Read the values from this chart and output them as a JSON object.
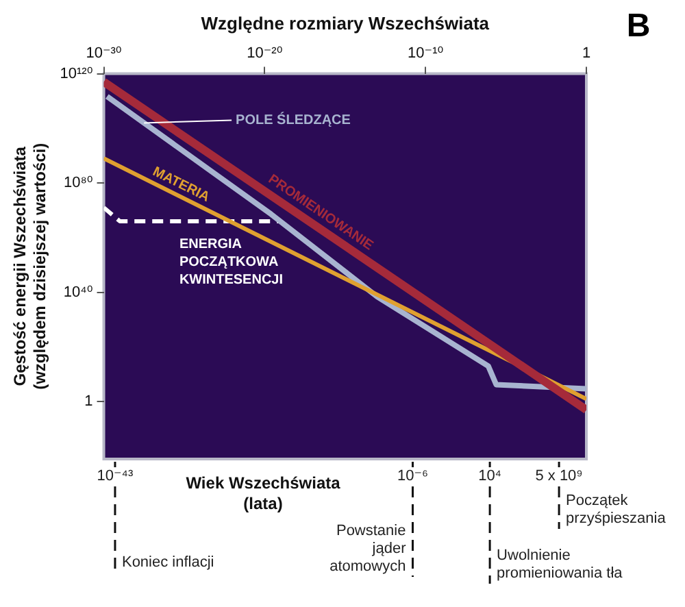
{
  "chart_data": {
    "type": "line",
    "xlabel": "Względne rozmiary Wszechświata",
    "ylabel": "Gęstość energii Wszechświata (względem dzisiejszej wartości)",
    "annotations": [
      "B",
      "Wiek Wszechświata (lata)",
      "10⁻⁴³",
      "10⁻⁶",
      "10⁴",
      "5 x 10⁹"
    ],
    "log": "xy",
    "xlim": [
      1e-30,
      1
    ],
    "xticks": [
      {
        "value": 1e-30,
        "label": "10⁻³⁰"
      },
      {
        "value": 1e-20,
        "label": "10⁻²⁰"
      },
      {
        "value": 1e-10,
        "label": "10⁻¹⁰"
      },
      1
    ],
    "ylim": [
      1e-21,
      1e+120
    ],
    "yticks": [
      {
        "value": 1e+120,
        "label": "10¹²⁰"
      },
      {
        "value": 1e+80,
        "label": "10⁸⁰"
      },
      {
        "value": 1e+40,
        "label": "10⁴⁰"
      },
      1
    ],
    "marker": "none",
    "series": [
      {
        "name": "PROMIENIOWANIE",
        "color": "#a52a3a",
        "x": [
          1e-30,
          1
        ],
        "values": [
          1e+117,
          0.001
        ]
      },
      {
        "name": "MATERIA",
        "color": "#e0a030",
        "x": [
          1e-30,
          1
        ],
        "values": [
          1e+89,
          10
        ]
      },
      {
        "name": "POLE ŚLEDZĄCE",
        "color": "#a8b4d0",
        "x": [
          1.6e-30,
          2.5e-20,
          1e-13,
          8e-07,
          2.5e-06,
          1
        ],
        "values": [
          5e+111,
          4e+68,
          2.5e+38,
          10000000000000.0,
          1600000.0,
          50000.0
        ]
      },
      {
        "name": "ENERGIA POCZĄTKOWA KWINTESENCJI",
        "color": "#ffffff",
        "line_style": "dashed",
        "x": [
          1e-30,
          1e-29,
          1e-19
        ],
        "values": [
          1e+71,
          1e+66,
          1e+66
        ]
      }
    ],
    "ref_lines": [
      {
        "axis": "x",
        "value": 5e-30,
        "label": "Koniec inflacji"
      },
      {
        "axis": "x",
        "value": 1.6e-11,
        "label": "Powstanie jąder atomowych"
      },
      {
        "axis": "x",
        "value": 1e-06,
        "label": "Uwolnienie promieniowania tła"
      },
      {
        "axis": "x",
        "value": 0.02,
        "label": "Początek przyśpieszania"
      }
    ]
  }
}
